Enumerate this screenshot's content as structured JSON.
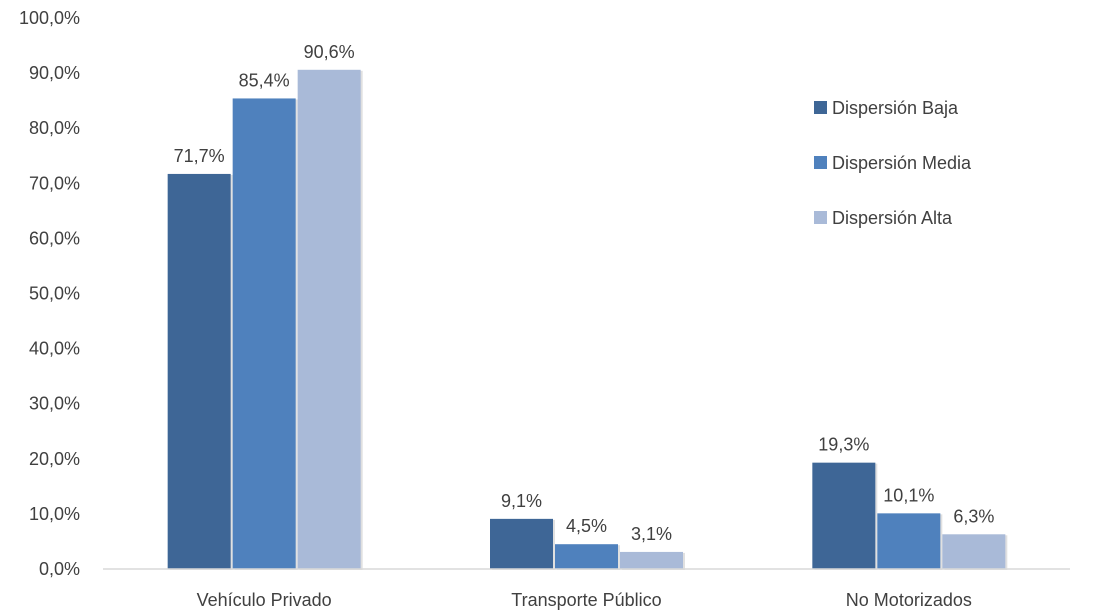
{
  "chart_data": {
    "type": "bar",
    "categories": [
      "Vehículo Privado",
      "Transporte Público",
      "No Motorizados"
    ],
    "series": [
      {
        "name": "Dispersión Baja",
        "values": [
          71.7,
          9.1,
          19.3
        ],
        "labels": [
          "71,7%",
          "9,1%",
          "19,3%"
        ],
        "color": "#3E6696"
      },
      {
        "name": "Dispersión Media",
        "values": [
          85.4,
          4.5,
          10.1
        ],
        "labels": [
          "85,4%",
          "4,5%",
          "10,1%"
        ],
        "color": "#4F81BD"
      },
      {
        "name": "Dispersión Alta",
        "values": [
          90.6,
          3.1,
          6.3
        ],
        "labels": [
          "90,6%",
          "3,1%",
          "6,3%"
        ],
        "color": "#A9BAD8"
      }
    ],
    "yticks": [
      "0,0%",
      "10,0%",
      "20,0%",
      "30,0%",
      "40,0%",
      "50,0%",
      "60,0%",
      "70,0%",
      "80,0%",
      "90,0%",
      "100,0%"
    ],
    "ylim": [
      0,
      100
    ],
    "grid": false,
    "legend_position": "right"
  }
}
